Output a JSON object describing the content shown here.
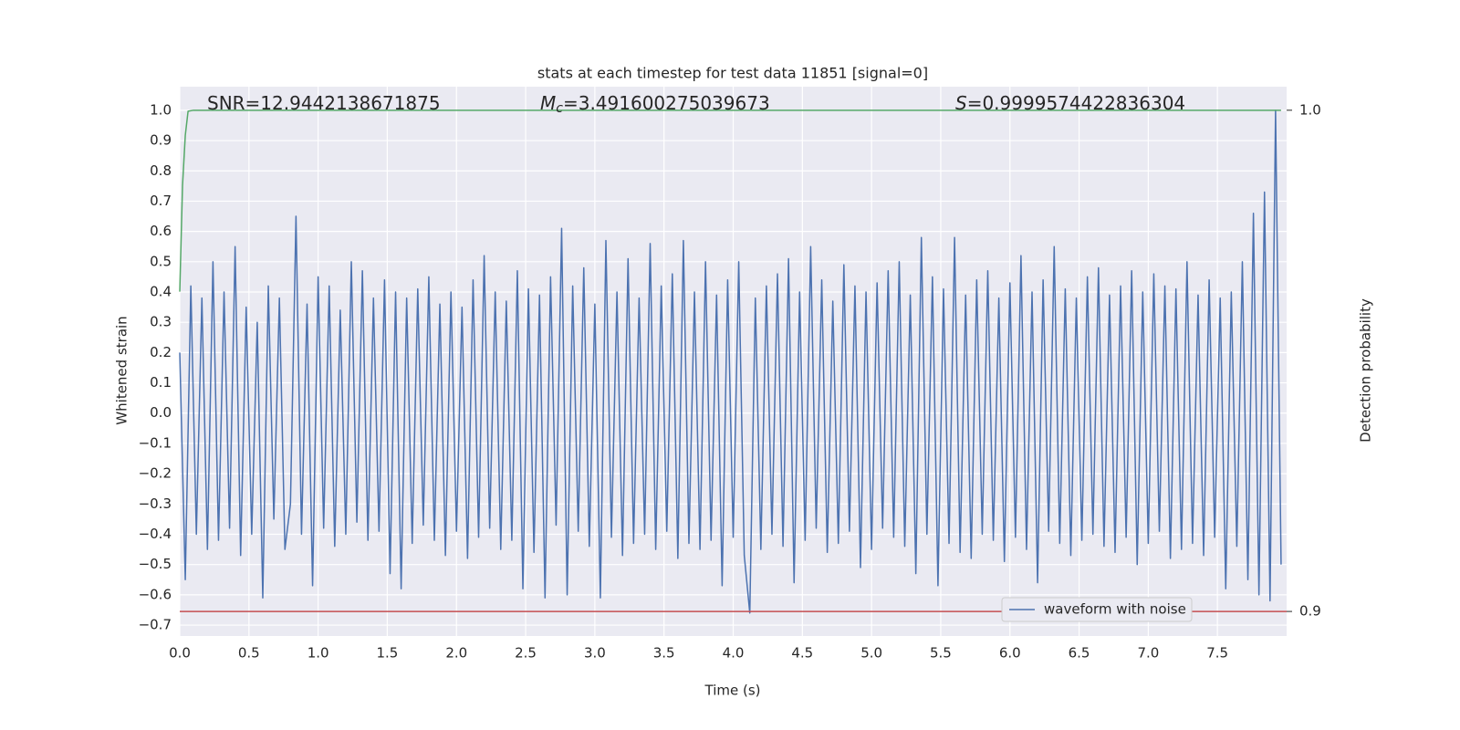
{
  "chart_data": {
    "type": "line",
    "title": "stats at each timestep for test data 11851 [signal=0]",
    "xlabel": "Time (s)",
    "ylabel": "Whitened strain",
    "y2label": "Detection probability",
    "annotations": [
      {
        "text": "SNR=12.9442138671875"
      },
      {
        "italic": "M",
        "sub": "c",
        "text": "=3.491600275039673"
      },
      {
        "italic": "S",
        "text": "=0.9999574422836304"
      }
    ],
    "xlim": [
      0,
      8.0
    ],
    "ylim": [
      -0.736,
      1.078
    ],
    "y2lim": [
      0.8951,
      1.0047
    ],
    "xticks": [
      {
        "value": 0,
        "label": "0.0"
      },
      0.5,
      {
        "value": 1,
        "label": "1.0"
      },
      1.5,
      {
        "value": 2,
        "label": "2.0"
      },
      2.5,
      {
        "value": 3,
        "label": "3.0"
      },
      3.5,
      {
        "value": 4,
        "label": "4.0"
      },
      4.5,
      {
        "value": 5,
        "label": "5.0"
      },
      5.5,
      {
        "value": 6,
        "label": "6.0"
      },
      6.5,
      {
        "value": 7,
        "label": "7.0"
      },
      7.5
    ],
    "yticks": [
      {
        "value": -0.7,
        "label": "−0.7"
      },
      {
        "value": -0.6,
        "label": "−0.6"
      },
      {
        "value": -0.5,
        "label": "−0.5"
      },
      {
        "value": -0.4,
        "label": "−0.4"
      },
      {
        "value": -0.3,
        "label": "−0.3"
      },
      {
        "value": -0.2,
        "label": "−0.2"
      },
      {
        "value": -0.1,
        "label": "−0.1"
      },
      {
        "value": 0,
        "label": "0.0"
      },
      0.1,
      0.2,
      0.3,
      0.4,
      0.5,
      0.6,
      0.7,
      0.8,
      0.9,
      {
        "value": 1,
        "label": "1.0"
      }
    ],
    "y2ticks": [
      0.9,
      {
        "value": 1,
        "label": "1.0"
      }
    ],
    "grid": true,
    "legend": "lower right",
    "series": [
      {
        "name": "waveform with noise",
        "color": "#4c72b0",
        "x": [
          0,
          0.04,
          0.08,
          0.12,
          0.16,
          0.2,
          0.24,
          0.28,
          0.32,
          0.36,
          0.4,
          0.44,
          0.48,
          0.52,
          0.56,
          0.6,
          0.64,
          0.68,
          0.72,
          0.76,
          0.8,
          0.84,
          0.88,
          0.92,
          0.96,
          1,
          1.04,
          1.08,
          1.12,
          1.16,
          1.2,
          1.24,
          1.28,
          1.32,
          1.36,
          1.4,
          1.44,
          1.48,
          1.52,
          1.56,
          1.6,
          1.64,
          1.68,
          1.72,
          1.76,
          1.8,
          1.84,
          1.88,
          1.92,
          1.96,
          2,
          2.04,
          2.08,
          2.12,
          2.16,
          2.2,
          2.24,
          2.28,
          2.32,
          2.36,
          2.4,
          2.44,
          2.48,
          2.52,
          2.56,
          2.6,
          2.64,
          2.68,
          2.72,
          2.76,
          2.8,
          2.84,
          2.88,
          2.92,
          2.96,
          3,
          3.04,
          3.08,
          3.12,
          3.16,
          3.2,
          3.24,
          3.28,
          3.32,
          3.36,
          3.4,
          3.44,
          3.48,
          3.52,
          3.56,
          3.6,
          3.64,
          3.68,
          3.72,
          3.76,
          3.8,
          3.84,
          3.88,
          3.92,
          3.96,
          4,
          4.04,
          4.08,
          4.12,
          4.16,
          4.2,
          4.24,
          4.28,
          4.32,
          4.36,
          4.4,
          4.44,
          4.48,
          4.52,
          4.56,
          4.6,
          4.64,
          4.68,
          4.72,
          4.76,
          4.8,
          4.84,
          4.88,
          4.92,
          4.96,
          5,
          5.04,
          5.08,
          5.12,
          5.16,
          5.2,
          5.24,
          5.28,
          5.32,
          5.36,
          5.4,
          5.44,
          5.48,
          5.52,
          5.56,
          5.6,
          5.64,
          5.68,
          5.72,
          5.76,
          5.8,
          5.84,
          5.88,
          5.92,
          5.96,
          6,
          6.04,
          6.08,
          6.12,
          6.16,
          6.2,
          6.24,
          6.28,
          6.32,
          6.36,
          6.4,
          6.44,
          6.48,
          6.52,
          6.56,
          6.6,
          6.64,
          6.68,
          6.72,
          6.76,
          6.8,
          6.84,
          6.88,
          6.92,
          6.96,
          7,
          7.04,
          7.08,
          7.12,
          7.16,
          7.2,
          7.24,
          7.28,
          7.32,
          7.36,
          7.4,
          7.44,
          7.48,
          7.52,
          7.56,
          7.6,
          7.64,
          7.68,
          7.72,
          7.76,
          7.8,
          7.84,
          7.88,
          7.92,
          7.96
        ],
        "values": [
          0.2,
          -0.55,
          0.42,
          -0.4,
          0.38,
          -0.45,
          0.5,
          -0.42,
          0.4,
          -0.38,
          0.55,
          -0.47,
          0.35,
          -0.4,
          0.3,
          -0.61,
          0.42,
          -0.35,
          0.38,
          -0.45,
          -0.3,
          0.65,
          -0.4,
          0.36,
          -0.57,
          0.45,
          -0.38,
          0.42,
          -0.44,
          0.34,
          -0.4,
          0.5,
          -0.36,
          0.47,
          -0.42,
          0.38,
          -0.39,
          0.44,
          -0.53,
          0.4,
          -0.58,
          0.38,
          -0.43,
          0.41,
          -0.37,
          0.45,
          -0.42,
          0.36,
          -0.47,
          0.4,
          -0.39,
          0.35,
          -0.48,
          0.44,
          -0.41,
          0.52,
          -0.38,
          0.4,
          -0.45,
          0.37,
          -0.42,
          0.47,
          -0.58,
          0.41,
          -0.46,
          0.39,
          -0.61,
          0.45,
          -0.37,
          0.61,
          -0.6,
          0.42,
          -0.39,
          0.48,
          -0.44,
          0.36,
          -0.61,
          0.57,
          -0.41,
          0.4,
          -0.47,
          0.51,
          -0.43,
          0.38,
          -0.4,
          0.56,
          -0.45,
          0.42,
          -0.39,
          0.46,
          -0.48,
          0.57,
          -0.43,
          0.4,
          -0.45,
          0.5,
          -0.42,
          0.39,
          -0.57,
          0.44,
          -0.41,
          0.5,
          -0.47,
          -0.66,
          0.38,
          -0.45,
          0.42,
          -0.4,
          0.46,
          -0.44,
          0.51,
          -0.56,
          0.4,
          -0.42,
          0.55,
          -0.38,
          0.44,
          -0.46,
          0.37,
          -0.43,
          0.49,
          -0.39,
          0.42,
          -0.51,
          0.4,
          -0.45,
          0.43,
          -0.38,
          0.47,
          -0.41,
          0.5,
          -0.44,
          0.39,
          -0.53,
          0.58,
          -0.4,
          0.45,
          -0.57,
          0.41,
          -0.43,
          0.58,
          -0.46,
          0.39,
          -0.48,
          0.44,
          -0.4,
          0.47,
          -0.42,
          0.38,
          -0.49,
          0.43,
          -0.41,
          0.52,
          -0.45,
          0.4,
          -0.56,
          0.44,
          -0.39,
          0.55,
          -0.43,
          0.41,
          -0.47,
          0.38,
          -0.42,
          0.45,
          -0.4,
          0.48,
          -0.44,
          0.39,
          -0.46,
          0.42,
          -0.41,
          0.47,
          -0.5,
          0.4,
          -0.43,
          0.46,
          -0.39,
          0.42,
          -0.48,
          0.41,
          -0.45,
          0.5,
          -0.43,
          0.39,
          -0.47,
          0.44,
          -0.41,
          0.38,
          -0.58,
          0.4,
          -0.44,
          0.5,
          -0.55,
          0.66,
          -0.6,
          0.73,
          -0.62,
          1.0,
          -0.5
        ]
      },
      {
        "color": "#55a868",
        "axis": "y2",
        "x": [
          0,
          0.02,
          0.04,
          0.06,
          0.1,
          7.96
        ],
        "values": [
          0.9638,
          0.985,
          0.995,
          0.9998,
          1.0,
          1.0
        ]
      },
      {
        "color": "#c44e52",
        "axis": "y2",
        "x": [
          0,
          8.0
        ],
        "values": [
          0.9,
          0.9
        ]
      }
    ]
  }
}
